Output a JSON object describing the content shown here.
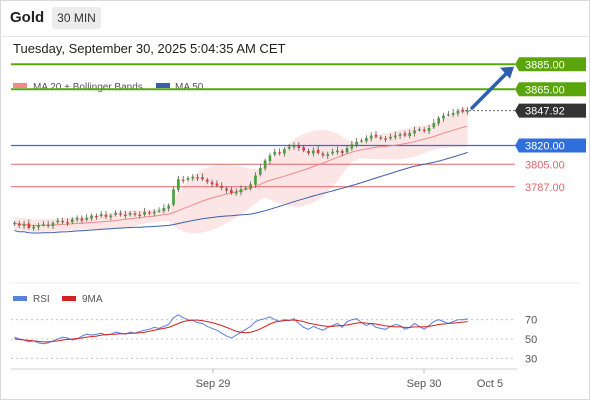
{
  "header": {
    "symbol": "Gold",
    "timeframe": "30 MIN",
    "timestamp": "Tuesday, September 30, 2025 5:04:35 AM CET"
  },
  "colors": {
    "resistance": "#5aa60a",
    "support_blue": "#2f6fdc",
    "support_red": "#e06666",
    "price_tag": "#333333",
    "candle_up": "#4b9e3c",
    "candle_down": "#d63c3c",
    "ma20": "#f08a8a",
    "ma50": "#3d5fa8",
    "bollinger_fill": "#fbdcdc",
    "rsi": "#5b7fdd",
    "rsi_ma": "#d32222",
    "arrow": "#2c5fb0"
  },
  "chart_data": [
    {
      "type": "candlestick",
      "title": "",
      "legend": [
        {
          "name": "MA 20 + Bollinger Bands",
          "color": "#f08a8a"
        },
        {
          "name": "MA 50",
          "color": "#3d5fa8"
        }
      ],
      "legend_placement": "top-left",
      "price_scale": [
        3710,
        3890
      ],
      "levels": [
        {
          "label": "3885.00",
          "value": 3885.0,
          "kind": "resistance",
          "style": "filled-green"
        },
        {
          "label": "3865.00",
          "value": 3865.0,
          "kind": "resistance",
          "style": "filled-green"
        },
        {
          "label": "3847.92",
          "value": 3847.92,
          "kind": "current-price",
          "style": "filled-dark"
        },
        {
          "label": "3820.00",
          "value": 3820.0,
          "kind": "support",
          "style": "filled-blue"
        },
        {
          "label": "3805.00",
          "value": 3805.0,
          "kind": "support",
          "style": "red-text"
        },
        {
          "label": "3787.00",
          "value": 3787.0,
          "kind": "support",
          "style": "red-text"
        }
      ],
      "x_ticks": [
        "Sep 29",
        "Sep 30",
        "Oct 5"
      ],
      "close_series": [
        3758,
        3756,
        3757,
        3754,
        3755,
        3756,
        3757,
        3756,
        3758,
        3760,
        3759,
        3758,
        3761,
        3762,
        3760,
        3762,
        3764,
        3763,
        3765,
        3763,
        3764,
        3766,
        3765,
        3764,
        3766,
        3765,
        3764,
        3767,
        3766,
        3767,
        3768,
        3770,
        3772,
        3785,
        3793,
        3792,
        3794,
        3795,
        3794,
        3793,
        3791,
        3789,
        3788,
        3786,
        3784,
        3782,
        3783,
        3785,
        3786,
        3789,
        3796,
        3802,
        3808,
        3812,
        3815,
        3814,
        3817,
        3819,
        3820,
        3818,
        3816,
        3814,
        3816,
        3814,
        3812,
        3813,
        3815,
        3816,
        3814,
        3818,
        3821,
        3823,
        3824,
        3826,
        3828,
        3827,
        3826,
        3825,
        3827,
        3828,
        3829,
        3828,
        3830,
        3832,
        3833,
        3832,
        3834,
        3838,
        3842,
        3844,
        3845,
        3846,
        3848,
        3847,
        3847.92
      ],
      "annotation": "bullish arrow toward 3885.00"
    },
    {
      "type": "line",
      "title": "",
      "legend": [
        {
          "name": "RSI",
          "color": "#5b7fdd"
        },
        {
          "name": "9MA",
          "color": "#d32222"
        }
      ],
      "legend_placement": "top-left",
      "y_ticks": [
        "70",
        "50",
        "30"
      ],
      "ylim": [
        20,
        80
      ],
      "reference_levels": [
        70,
        50,
        30
      ],
      "series": [
        {
          "name": "RSI",
          "values": [
            52,
            50,
            49,
            47,
            48,
            46,
            45,
            46,
            48,
            50,
            52,
            51,
            49,
            50,
            53,
            55,
            54,
            55,
            56,
            54,
            55,
            57,
            56,
            55,
            57,
            56,
            58,
            59,
            60,
            62,
            61,
            63,
            65,
            72,
            75,
            72,
            70,
            69,
            67,
            66,
            63,
            61,
            59,
            56,
            53,
            51,
            54,
            57,
            60,
            63,
            68,
            70,
            71,
            73,
            70,
            68,
            70,
            69,
            71,
            66,
            62,
            60,
            63,
            61,
            59,
            62,
            64,
            66,
            62,
            68,
            70,
            71,
            67,
            64,
            66,
            62,
            61,
            60,
            63,
            65,
            64,
            60,
            62,
            66,
            63,
            60,
            64,
            68,
            70,
            68,
            66,
            68,
            70,
            70,
            71
          ]
        },
        {
          "name": "9MA",
          "values": [
            50,
            49.5,
            49,
            48.5,
            48,
            47.5,
            47,
            47,
            47.5,
            48,
            49,
            49.5,
            50,
            50.5,
            51,
            52,
            52.5,
            53,
            54,
            54.5,
            55,
            55,
            55.5,
            55.5,
            56,
            56,
            56.5,
            57,
            58,
            59,
            60,
            61,
            62,
            64,
            66,
            68,
            69,
            69.5,
            69.5,
            69,
            68,
            67,
            65.5,
            64,
            62,
            60,
            58,
            57,
            56.5,
            57,
            58.5,
            60.5,
            63,
            65.5,
            67.5,
            68.5,
            69,
            69.5,
            69.5,
            69,
            68,
            66.5,
            65.5,
            64.5,
            63.5,
            63,
            63,
            63.5,
            64,
            64.5,
            65.5,
            66.5,
            67,
            66.5,
            66,
            65.5,
            64.5,
            63.5,
            63,
            62.5,
            62.5,
            62,
            62,
            62.5,
            62.5,
            62.5,
            63,
            64,
            65,
            65.5,
            66,
            66.5,
            67,
            67.5,
            68
          ]
        }
      ]
    }
  ]
}
